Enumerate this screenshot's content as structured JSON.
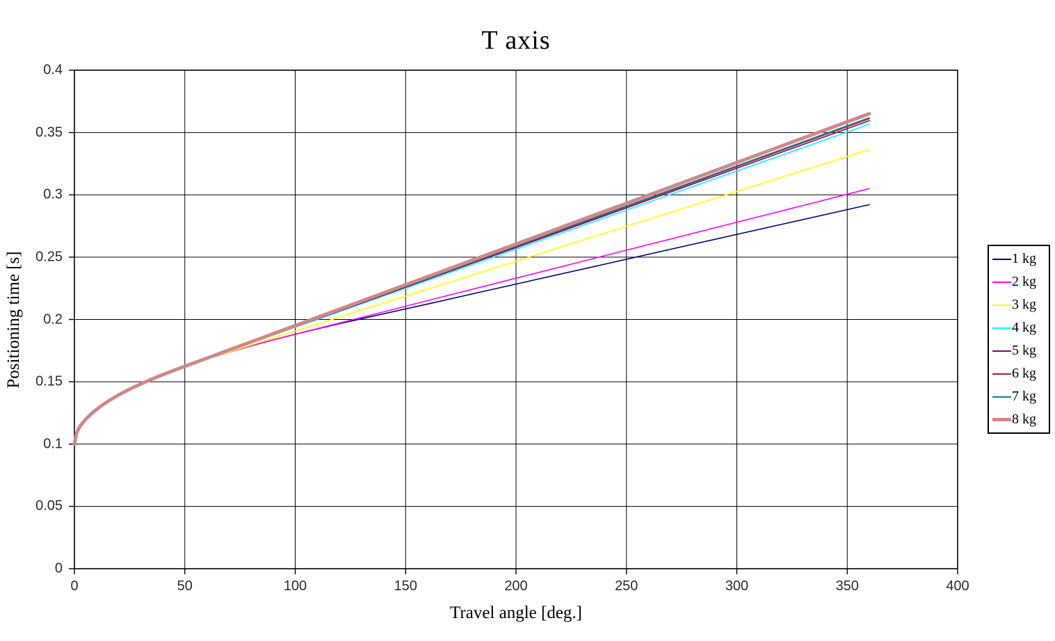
{
  "title": "T axis",
  "axes": {
    "x_label": "Travel angle [deg.]",
    "y_label": "Positioning time [s]",
    "x_tick_values": [
      0,
      50,
      100,
      150,
      200,
      250,
      300,
      350,
      400
    ],
    "x_tick_labels": [
      "0",
      "50",
      "100",
      "150",
      "200",
      "250",
      "300",
      "350",
      "400"
    ],
    "y_tick_values": [
      0,
      0.05,
      0.1,
      0.15,
      0.2,
      0.25,
      0.3,
      0.35,
      0.4
    ],
    "y_tick_labels": [
      "0",
      "0.05",
      "0.1",
      "0.15",
      "0.2",
      "0.25",
      "0.3",
      "0.35",
      "0.4"
    ]
  },
  "chart_data": {
    "type": "line",
    "title": "T axis",
    "xlabel": "Travel angle [deg.]",
    "ylabel": "Positioning time [s]",
    "xlim": [
      0,
      400
    ],
    "ylim": [
      0,
      0.4
    ],
    "grid": true,
    "grid_color": "#000000",
    "legend_position": "right-outside",
    "series": [
      {
        "name": "1 kg",
        "color": "#000080",
        "width": 1.6,
        "points": [
          [
            0,
            0.1
          ],
          [
            1,
            0.1088
          ],
          [
            2,
            0.1125
          ],
          [
            3,
            0.1153
          ],
          [
            5,
            0.1197
          ],
          [
            8,
            0.1249
          ],
          [
            12,
            0.1305
          ],
          [
            16,
            0.1353
          ],
          [
            20,
            0.1394
          ],
          [
            25,
            0.1441
          ],
          [
            30,
            0.1483
          ],
          [
            35,
            0.1521
          ],
          [
            40,
            0.1557
          ],
          [
            45,
            0.1591
          ],
          [
            50,
            0.1623
          ],
          [
            60,
            0.1683
          ],
          [
            70,
            0.1737
          ],
          [
            80,
            0.1788
          ],
          [
            90,
            0.1836
          ],
          [
            100,
            0.1881
          ],
          [
            110,
            0.1924
          ],
          [
            120,
            0.1966
          ],
          [
            140,
            0.2045
          ],
          [
            160,
            0.2124
          ],
          [
            180,
            0.2204
          ],
          [
            200,
            0.2284
          ],
          [
            240,
            0.2443
          ],
          [
            280,
            0.2603
          ],
          [
            320,
            0.2762
          ],
          [
            360,
            0.2921
          ]
        ]
      },
      {
        "name": "2 kg",
        "color": "#FF00FF",
        "width": 1.6,
        "points": [
          [
            0,
            0.1
          ],
          [
            1,
            0.1088
          ],
          [
            2,
            0.1125
          ],
          [
            3,
            0.1153
          ],
          [
            5,
            0.1197
          ],
          [
            8,
            0.1249
          ],
          [
            12,
            0.1305
          ],
          [
            16,
            0.1353
          ],
          [
            20,
            0.1394
          ],
          [
            25,
            0.1441
          ],
          [
            30,
            0.1483
          ],
          [
            35,
            0.1521
          ],
          [
            40,
            0.1557
          ],
          [
            45,
            0.1591
          ],
          [
            50,
            0.1623
          ],
          [
            60,
            0.1683
          ],
          [
            70,
            0.1737
          ],
          [
            80,
            0.1788
          ],
          [
            90,
            0.1836
          ],
          [
            100,
            0.1881
          ],
          [
            120,
            0.1971
          ],
          [
            140,
            0.2061
          ],
          [
            160,
            0.2151
          ],
          [
            180,
            0.2241
          ],
          [
            200,
            0.2331
          ],
          [
            240,
            0.2511
          ],
          [
            280,
            0.269
          ],
          [
            320,
            0.287
          ],
          [
            360,
            0.305
          ]
        ]
      },
      {
        "name": "3 kg",
        "color": "#FFFF00",
        "width": 1.6,
        "points": [
          [
            0,
            0.1
          ],
          [
            1,
            0.1088
          ],
          [
            2,
            0.1125
          ],
          [
            3,
            0.1153
          ],
          [
            5,
            0.1197
          ],
          [
            8,
            0.1249
          ],
          [
            12,
            0.1305
          ],
          [
            16,
            0.1353
          ],
          [
            20,
            0.1394
          ],
          [
            25,
            0.1441
          ],
          [
            30,
            0.1483
          ],
          [
            35,
            0.1521
          ],
          [
            40,
            0.1557
          ],
          [
            45,
            0.1591
          ],
          [
            50,
            0.1623
          ],
          [
            60,
            0.1683
          ],
          [
            70,
            0.1739
          ],
          [
            80,
            0.1795
          ],
          [
            100,
            0.1907
          ],
          [
            120,
            0.2019
          ],
          [
            140,
            0.2131
          ],
          [
            160,
            0.2243
          ],
          [
            180,
            0.2355
          ],
          [
            200,
            0.2467
          ],
          [
            240,
            0.2691
          ],
          [
            280,
            0.2915
          ],
          [
            320,
            0.3139
          ],
          [
            360,
            0.3363
          ]
        ]
      },
      {
        "name": "4 kg",
        "color": "#00FFFF",
        "width": 1.6,
        "points": [
          [
            0,
            0.1
          ],
          [
            1,
            0.1088
          ],
          [
            2,
            0.1125
          ],
          [
            3,
            0.1153
          ],
          [
            5,
            0.1197
          ],
          [
            8,
            0.1249
          ],
          [
            12,
            0.1305
          ],
          [
            16,
            0.1353
          ],
          [
            20,
            0.1394
          ],
          [
            25,
            0.1441
          ],
          [
            30,
            0.1483
          ],
          [
            35,
            0.1521
          ],
          [
            40,
            0.1557
          ],
          [
            45,
            0.1591
          ],
          [
            50,
            0.1624
          ],
          [
            60,
            0.1686
          ],
          [
            70,
            0.1749
          ],
          [
            80,
            0.1812
          ],
          [
            100,
            0.1937
          ],
          [
            120,
            0.2062
          ],
          [
            140,
            0.2188
          ],
          [
            160,
            0.2313
          ],
          [
            180,
            0.2439
          ],
          [
            200,
            0.2564
          ],
          [
            240,
            0.2815
          ],
          [
            280,
            0.3066
          ],
          [
            320,
            0.3316
          ],
          [
            360,
            0.3567
          ]
        ]
      },
      {
        "name": "5 kg",
        "color": "#800080",
        "width": 1.6,
        "points": [
          [
            0,
            0.1
          ],
          [
            1,
            0.1088
          ],
          [
            2,
            0.1125
          ],
          [
            3,
            0.1153
          ],
          [
            5,
            0.1197
          ],
          [
            8,
            0.1249
          ],
          [
            12,
            0.1305
          ],
          [
            16,
            0.1353
          ],
          [
            20,
            0.1394
          ],
          [
            25,
            0.1441
          ],
          [
            30,
            0.1483
          ],
          [
            35,
            0.1521
          ],
          [
            40,
            0.1557
          ],
          [
            45,
            0.1591
          ],
          [
            50,
            0.1623
          ],
          [
            60,
            0.1687
          ],
          [
            70,
            0.175
          ],
          [
            80,
            0.1814
          ],
          [
            100,
            0.1941
          ],
          [
            120,
            0.2068
          ],
          [
            140,
            0.2195
          ],
          [
            160,
            0.2323
          ],
          [
            180,
            0.245
          ],
          [
            200,
            0.2577
          ],
          [
            240,
            0.2831
          ],
          [
            280,
            0.3086
          ],
          [
            320,
            0.334
          ],
          [
            360,
            0.3595
          ]
        ]
      },
      {
        "name": "6 kg",
        "color": "#A02030",
        "width": 1.6,
        "points": [
          [
            0,
            0.1
          ],
          [
            1,
            0.1088
          ],
          [
            2,
            0.1125
          ],
          [
            3,
            0.1153
          ],
          [
            5,
            0.1197
          ],
          [
            8,
            0.1249
          ],
          [
            12,
            0.1305
          ],
          [
            16,
            0.1353
          ],
          [
            20,
            0.1394
          ],
          [
            25,
            0.1441
          ],
          [
            30,
            0.1483
          ],
          [
            35,
            0.1521
          ],
          [
            40,
            0.1557
          ],
          [
            45,
            0.1591
          ],
          [
            50,
            0.1624
          ],
          [
            60,
            0.1688
          ],
          [
            70,
            0.1752
          ],
          [
            80,
            0.1816
          ],
          [
            100,
            0.1944
          ],
          [
            120,
            0.2072
          ],
          [
            140,
            0.22
          ],
          [
            160,
            0.2329
          ],
          [
            180,
            0.2457
          ],
          [
            200,
            0.2585
          ],
          [
            240,
            0.2841
          ],
          [
            280,
            0.3098
          ],
          [
            320,
            0.3354
          ],
          [
            360,
            0.3611
          ]
        ]
      },
      {
        "name": "7 kg",
        "color": "#008B8B",
        "width": 1.6,
        "points": [
          [
            0,
            0.1
          ],
          [
            1,
            0.1088
          ],
          [
            2,
            0.1125
          ],
          [
            3,
            0.1153
          ],
          [
            5,
            0.1197
          ],
          [
            8,
            0.1249
          ],
          [
            12,
            0.1305
          ],
          [
            16,
            0.1353
          ],
          [
            20,
            0.1394
          ],
          [
            25,
            0.1441
          ],
          [
            30,
            0.1483
          ],
          [
            35,
            0.1521
          ],
          [
            40,
            0.1557
          ],
          [
            45,
            0.1591
          ],
          [
            50,
            0.1623
          ],
          [
            60,
            0.1687
          ],
          [
            70,
            0.1752
          ],
          [
            80,
            0.1816
          ],
          [
            100,
            0.1945
          ],
          [
            120,
            0.2074
          ],
          [
            140,
            0.2203
          ],
          [
            160,
            0.2331
          ],
          [
            180,
            0.246
          ],
          [
            200,
            0.2589
          ],
          [
            240,
            0.2847
          ],
          [
            280,
            0.3104
          ],
          [
            320,
            0.3362
          ],
          [
            360,
            0.3619
          ]
        ]
      },
      {
        "name": "8 kg",
        "color": "#D08888",
        "width": 5,
        "points": [
          [
            0,
            0.1
          ],
          [
            1,
            0.1088
          ],
          [
            2,
            0.1125
          ],
          [
            3,
            0.1153
          ],
          [
            5,
            0.1197
          ],
          [
            8,
            0.1249
          ],
          [
            12,
            0.1305
          ],
          [
            16,
            0.1353
          ],
          [
            20,
            0.1394
          ],
          [
            25,
            0.1441
          ],
          [
            30,
            0.1483
          ],
          [
            35,
            0.1521
          ],
          [
            40,
            0.1557
          ],
          [
            45,
            0.1591
          ],
          [
            50,
            0.1624
          ],
          [
            60,
            0.1689
          ],
          [
            70,
            0.1755
          ],
          [
            80,
            0.182
          ],
          [
            100,
            0.1951
          ],
          [
            120,
            0.2082
          ],
          [
            140,
            0.2213
          ],
          [
            160,
            0.2343
          ],
          [
            180,
            0.2474
          ],
          [
            200,
            0.2605
          ],
          [
            240,
            0.2867
          ],
          [
            280,
            0.3128
          ],
          [
            320,
            0.339
          ],
          [
            360,
            0.3651
          ]
        ]
      }
    ]
  }
}
